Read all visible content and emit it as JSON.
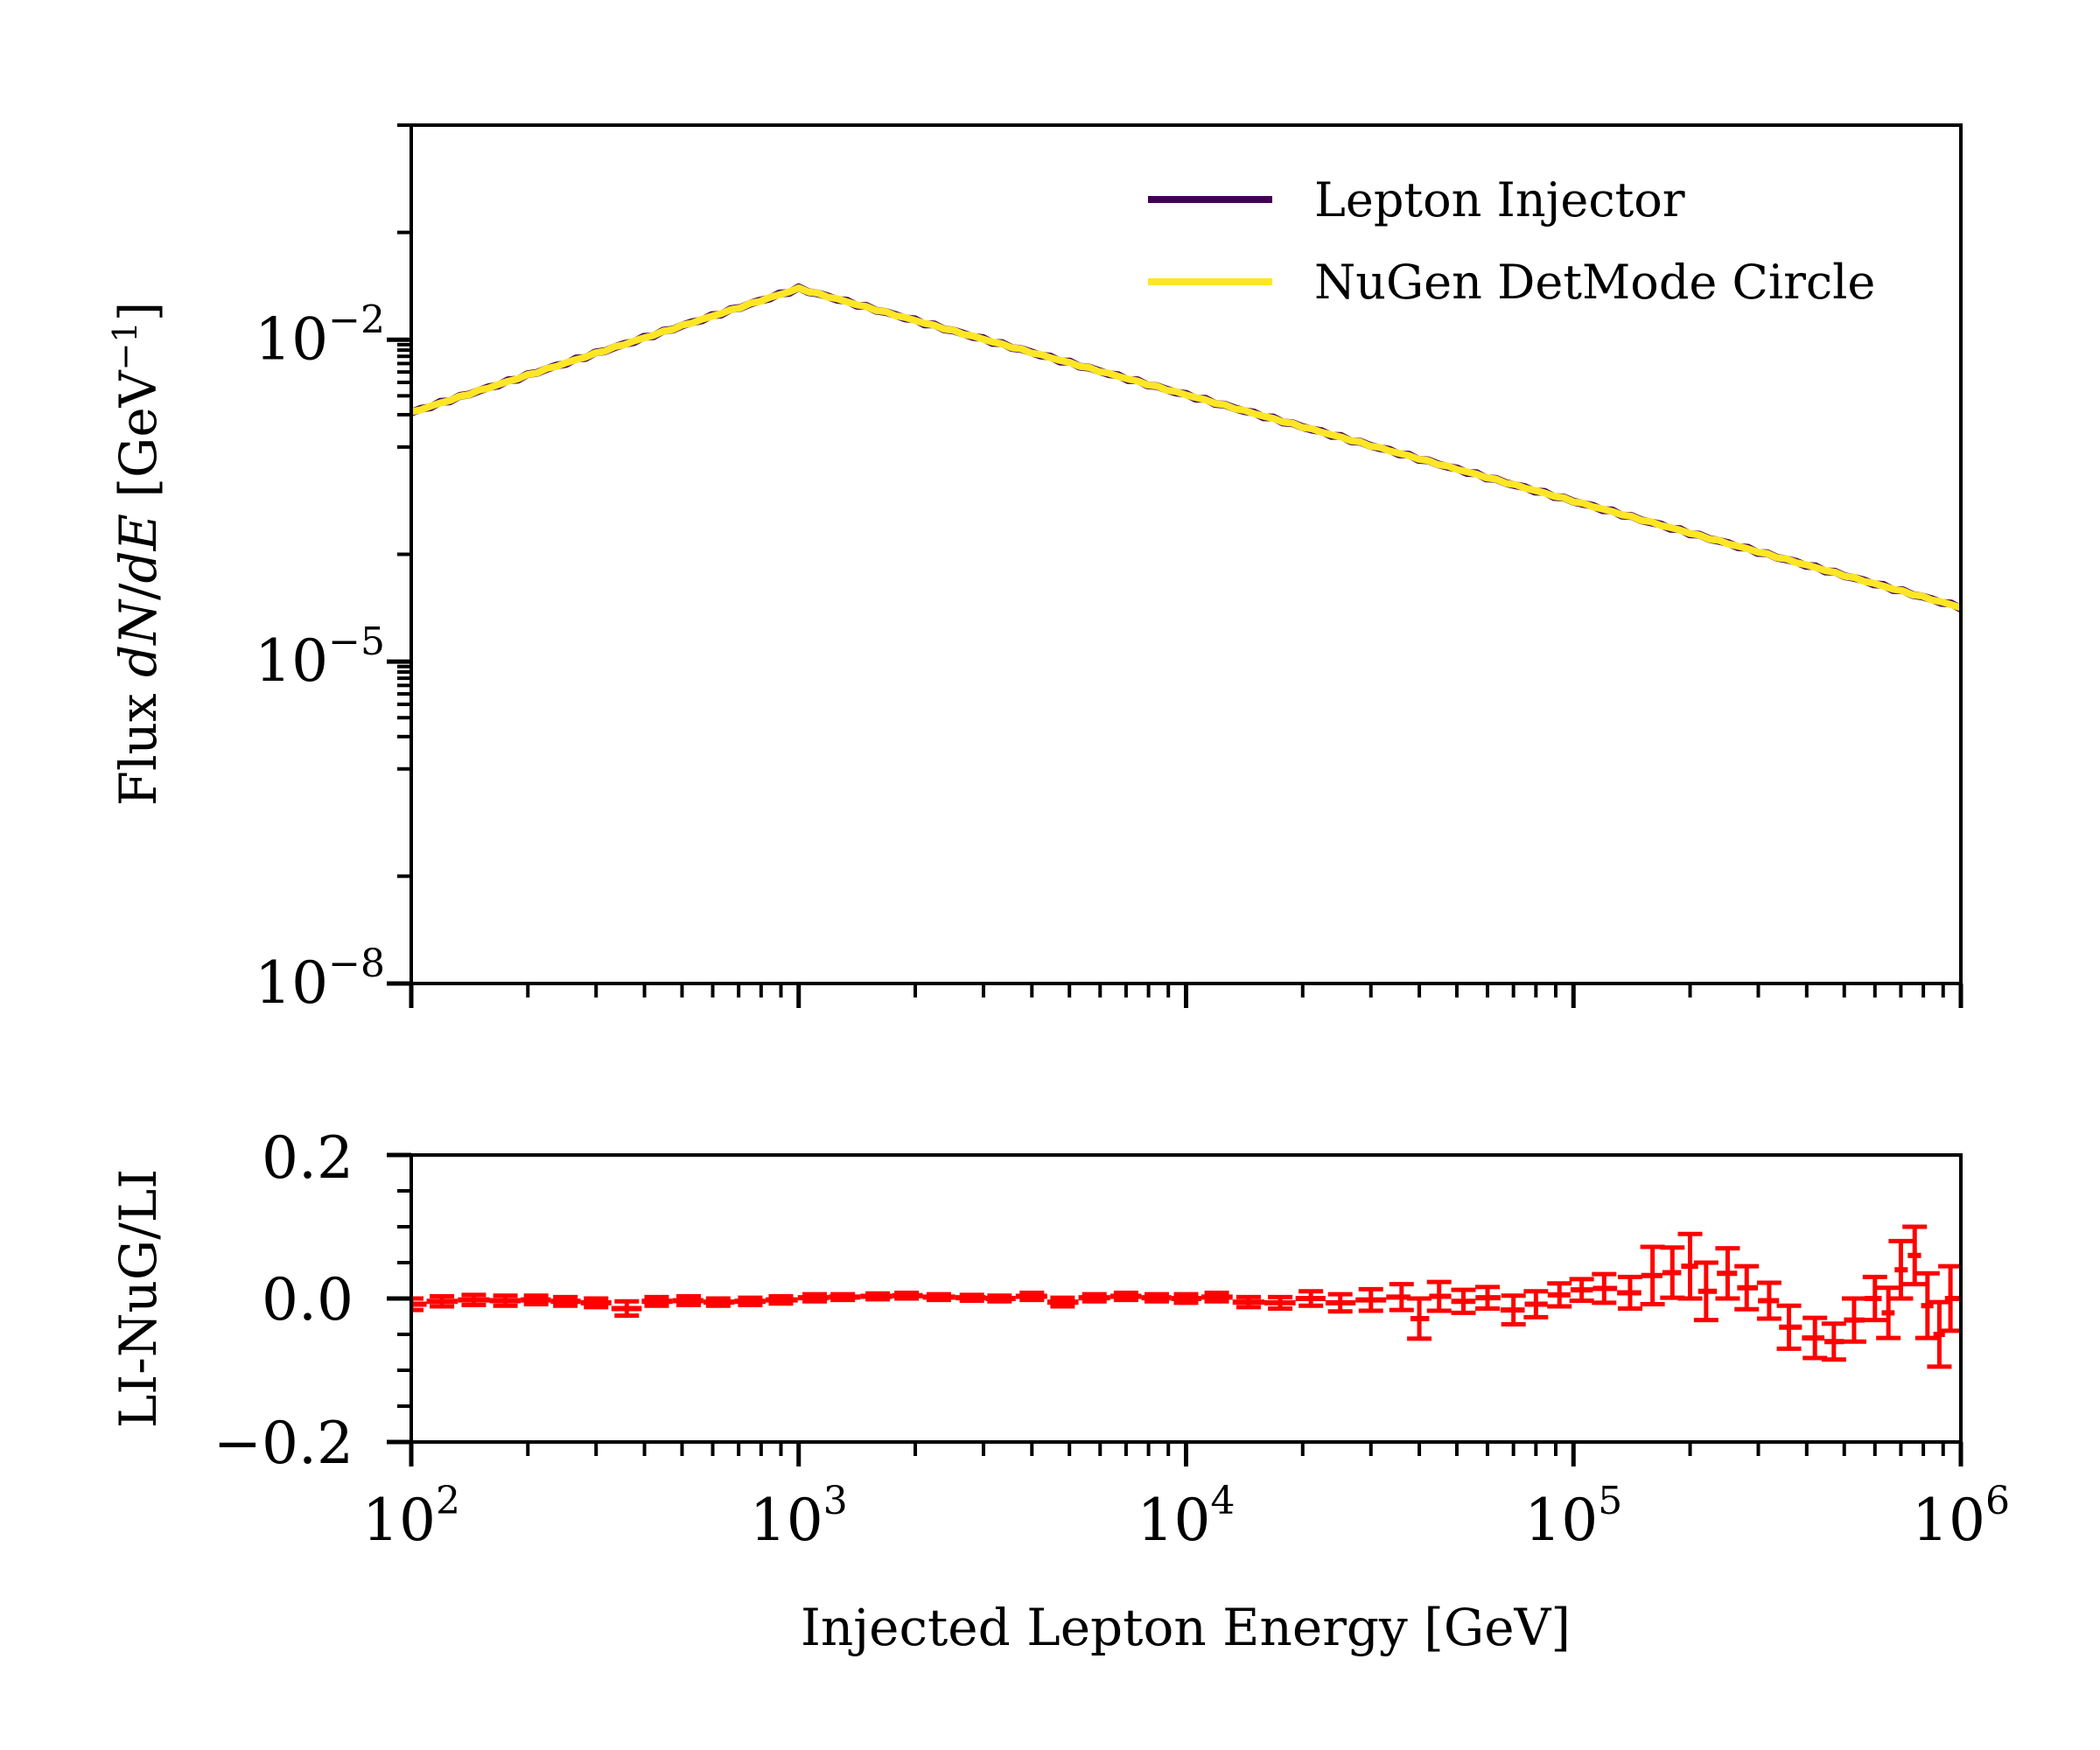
{
  "chart_data": [
    {
      "type": "line",
      "xscale": "log",
      "yscale": "log",
      "xlim": [
        100,
        1000000
      ],
      "ylim": [
        1e-08,
        1
      ],
      "ylabel": "Flux dN/dE [GeV⁻¹]",
      "yticks": [
        {
          "value": 0.01,
          "base": "10",
          "exp": "−2"
        },
        {
          "value": 1e-05,
          "base": "10",
          "exp": "−5"
        },
        {
          "value": 1e-08,
          "base": "10",
          "exp": "−8"
        }
      ],
      "legend_position": "upper-right",
      "series": [
        {
          "name": "Lepton Injector",
          "color": "#440154",
          "x": [
            100,
            1000,
            1000000
          ],
          "y": [
            0.0021,
            0.03,
            3.2e-05
          ]
        },
        {
          "name": "NuGen DetMode Circle",
          "color": "#fde725",
          "x": [
            100,
            1000,
            1000000
          ],
          "y": [
            0.0021,
            0.03,
            3.2e-05
          ]
        }
      ]
    },
    {
      "type": "errorbar",
      "xscale": "log",
      "xlim": [
        100,
        1000000
      ],
      "ylim": [
        -0.2,
        0.2
      ],
      "xlabel": "Injected Lepton Energy [GeV]",
      "ylabel": "LI-NuG/LI",
      "color": "#ff0000",
      "yticks": [
        {
          "value": 0.2,
          "text": "0.2"
        },
        {
          "value": 0.0,
          "text": "0.0"
        },
        {
          "value": -0.2,
          "text": "−0.2"
        }
      ],
      "xticks": [
        {
          "value": 100,
          "base": "10",
          "exp": "2"
        },
        {
          "value": 1000,
          "base": "10",
          "exp": "3"
        },
        {
          "value": 10000,
          "base": "10",
          "exp": "4"
        },
        {
          "value": 100000,
          "base": "10",
          "exp": "5"
        },
        {
          "value": 1000000,
          "base": "10",
          "exp": "6"
        }
      ],
      "x": [
        100,
        120,
        145,
        175,
        210,
        250,
        300,
        360,
        430,
        520,
        620,
        750,
        900,
        1100,
        1300,
        1600,
        1900,
        2300,
        2800,
        3300,
        4000,
        4800,
        5800,
        7000,
        8400,
        10000,
        12000,
        14500,
        17500,
        21000,
        25000,
        30000,
        36000,
        40000,
        45000,
        52000,
        60000,
        70000,
        80000,
        92000,
        105000,
        120000,
        140000,
        160000,
        180000,
        200000,
        220000,
        250000,
        280000,
        320000,
        360000,
        420000,
        470000,
        530000,
        600000,
        650000,
        700000,
        760000,
        820000,
        880000,
        940000
      ],
      "y": [
        -0.008,
        -0.004,
        -0.002,
        -0.003,
        -0.002,
        -0.004,
        -0.006,
        -0.014,
        -0.004,
        -0.003,
        -0.005,
        -0.004,
        -0.002,
        0.001,
        0.002,
        0.003,
        0.004,
        0.002,
        0.001,
        0.0,
        0.003,
        -0.005,
        0.001,
        0.003,
        0.001,
        0.0,
        0.002,
        -0.005,
        -0.006,
        0.0,
        -0.006,
        -0.002,
        0.002,
        -0.028,
        0.003,
        -0.004,
        0.001,
        -0.016,
        -0.008,
        0.005,
        0.012,
        0.014,
        0.008,
        0.032,
        0.036,
        0.045,
        0.01,
        0.035,
        0.015,
        -0.003,
        -0.04,
        -0.055,
        -0.06,
        -0.03,
        0.0,
        -0.02,
        0.04,
        0.06,
        -0.01,
        -0.05,
        0.0
      ],
      "err": [
        0.008,
        0.007,
        0.007,
        0.007,
        0.006,
        0.006,
        0.006,
        0.01,
        0.006,
        0.006,
        0.005,
        0.005,
        0.005,
        0.005,
        0.004,
        0.004,
        0.004,
        0.004,
        0.004,
        0.004,
        0.005,
        0.006,
        0.005,
        0.005,
        0.005,
        0.006,
        0.006,
        0.007,
        0.008,
        0.01,
        0.012,
        0.015,
        0.018,
        0.028,
        0.02,
        0.016,
        0.015,
        0.02,
        0.018,
        0.016,
        0.015,
        0.02,
        0.022,
        0.04,
        0.035,
        0.045,
        0.04,
        0.035,
        0.03,
        0.025,
        0.03,
        0.028,
        0.025,
        0.03,
        0.03,
        0.035,
        0.04,
        0.04,
        0.045,
        0.045,
        0.045
      ]
    }
  ]
}
